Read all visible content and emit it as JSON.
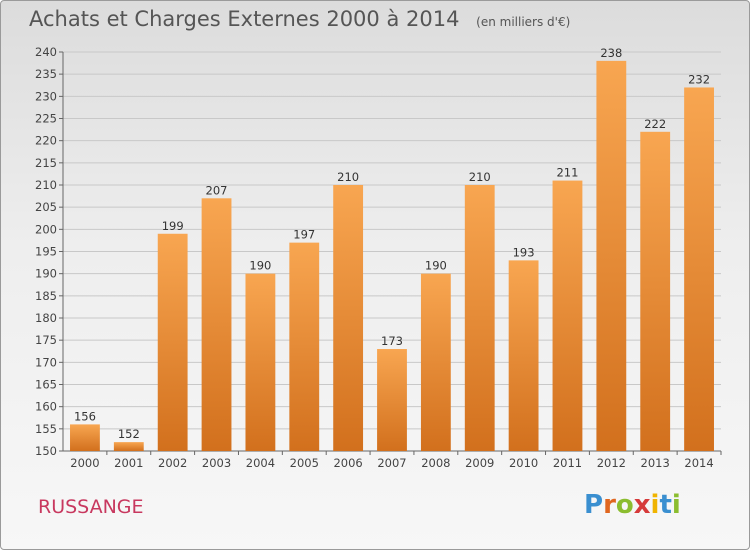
{
  "header": {
    "title": "Achats et Charges Externes 2000 à 2014",
    "subtitle": "(en milliers d'€)"
  },
  "footer": {
    "commune": "RUSSANGE",
    "logo_text": "Proxiti",
    "logo_letters": [
      {
        "char": "P",
        "color": "#3a8fd0"
      },
      {
        "char": "r",
        "color": "#e0661f"
      },
      {
        "char": "o",
        "color": "#8bbd2f"
      },
      {
        "char": "x",
        "color": "#d63a3a"
      },
      {
        "char": "i",
        "color": "#f0b400"
      },
      {
        "char": "t",
        "color": "#3a8fd0"
      },
      {
        "char": "i",
        "color": "#8bbd2f"
      }
    ]
  },
  "colors": {
    "bar_top": "#f8a651",
    "bar_bottom": "#d2701d",
    "grid": "#c8c8c8"
  },
  "chart_data": {
    "type": "bar",
    "title": "Achats et Charges Externes 2000 à 2014",
    "subtitle": "(en milliers d'€)",
    "categories": [
      "2000",
      "2001",
      "2002",
      "2003",
      "2004",
      "2005",
      "2006",
      "2007",
      "2008",
      "2009",
      "2010",
      "2011",
      "2012",
      "2013",
      "2014"
    ],
    "values": [
      156,
      152,
      199,
      207,
      190,
      197,
      210,
      173,
      190,
      210,
      193,
      211,
      238,
      222,
      232
    ],
    "ylim": [
      150,
      240
    ],
    "yticks": [
      150,
      155,
      160,
      165,
      170,
      175,
      180,
      185,
      190,
      195,
      200,
      205,
      210,
      215,
      220,
      225,
      230,
      235,
      240
    ],
    "grid": true,
    "xlabel": "",
    "ylabel": ""
  }
}
